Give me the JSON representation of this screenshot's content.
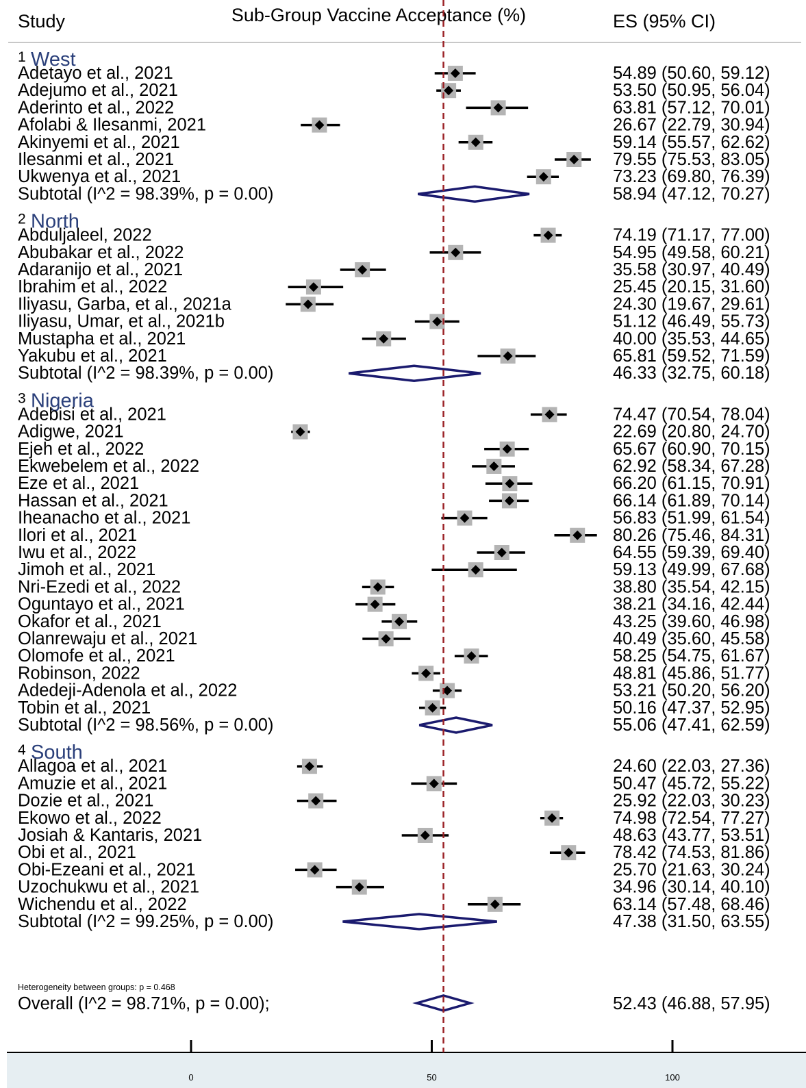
{
  "header": {
    "study": "Study",
    "title": "Sub-Group Vaccine Acceptance (%)",
    "es": "ES (95% CI)"
  },
  "colors": {
    "group_title": "#2a3f7a",
    "diamond": "#1a1a6e",
    "box": "#b4b4b4",
    "refline": "#9b2226",
    "axis_band": "#e6eef2"
  },
  "chart_data": {
    "type": "forest",
    "xaxis": {
      "min": 0,
      "max": 100,
      "ticks": [
        0,
        50,
        100
      ]
    },
    "reference_line": 52.43,
    "groups": [
      {
        "number": "1",
        "name": "West",
        "studies": [
          {
            "label": "Adetayo et al., 2021",
            "es": 54.89,
            "lo": 50.6,
            "hi": 59.12,
            "text": "54.89 (50.60, 59.12)"
          },
          {
            "label": "Adejumo et al., 2021",
            "es": 53.5,
            "lo": 50.95,
            "hi": 56.04,
            "text": "53.50 (50.95, 56.04)"
          },
          {
            "label": "Aderinto et al., 2022",
            "es": 63.81,
            "lo": 57.12,
            "hi": 70.01,
            "text": "63.81 (57.12, 70.01)"
          },
          {
            "label": "Afolabi & Ilesanmi, 2021",
            "es": 26.67,
            "lo": 22.79,
            "hi": 30.94,
            "text": "26.67 (22.79, 30.94)"
          },
          {
            "label": "Akinyemi et al., 2021",
            "es": 59.14,
            "lo": 55.57,
            "hi": 62.62,
            "text": "59.14 (55.57, 62.62)"
          },
          {
            "label": "Ilesanmi et al., 2021",
            "es": 79.55,
            "lo": 75.53,
            "hi": 83.05,
            "text": "79.55 (75.53, 83.05)"
          },
          {
            "label": "Ukwenya et al., 2021",
            "es": 73.23,
            "lo": 69.8,
            "hi": 76.39,
            "text": "73.23 (69.80, 76.39)"
          }
        ],
        "subtotal": {
          "label": "Subtotal  (I^2 = 98.39%, p = 0.00)",
          "es": 58.94,
          "lo": 47.12,
          "hi": 70.27,
          "text": "58.94 (47.12, 70.27)"
        }
      },
      {
        "number": "2",
        "name": "North",
        "studies": [
          {
            "label": "Abduljaleel, 2022",
            "es": 74.19,
            "lo": 71.17,
            "hi": 77.0,
            "text": "74.19 (71.17, 77.00)"
          },
          {
            "label": "Abubakar et al., 2022",
            "es": 54.95,
            "lo": 49.58,
            "hi": 60.21,
            "text": "54.95 (49.58, 60.21)"
          },
          {
            "label": "Adaranijo et al., 2021",
            "es": 35.58,
            "lo": 30.97,
            "hi": 40.49,
            "text": "35.58 (30.97, 40.49)"
          },
          {
            "label": "Ibrahim et al., 2022",
            "es": 25.45,
            "lo": 20.15,
            "hi": 31.6,
            "text": "25.45 (20.15, 31.60)"
          },
          {
            "label": "Iliyasu, Garba, et al., 2021a",
            "es": 24.3,
            "lo": 19.67,
            "hi": 29.61,
            "text": "24.30 (19.67, 29.61)"
          },
          {
            "label": "Iliyasu, Umar, et al., 2021b",
            "es": 51.12,
            "lo": 46.49,
            "hi": 55.73,
            "text": "51.12 (46.49, 55.73)"
          },
          {
            "label": "Mustapha et al., 2021",
            "es": 40.0,
            "lo": 35.53,
            "hi": 44.65,
            "text": "40.00 (35.53, 44.65)"
          },
          {
            "label": "Yakubu et al., 2021",
            "es": 65.81,
            "lo": 59.52,
            "hi": 71.59,
            "text": "65.81 (59.52, 71.59)"
          }
        ],
        "subtotal": {
          "label": "Subtotal  (I^2 = 98.39%, p = 0.00)",
          "es": 46.33,
          "lo": 32.75,
          "hi": 60.18,
          "text": "46.33 (32.75, 60.18)"
        }
      },
      {
        "number": "3",
        "name": "Nigeria",
        "studies": [
          {
            "label": "Adebisi et al., 2021",
            "es": 74.47,
            "lo": 70.54,
            "hi": 78.04,
            "text": "74.47 (70.54, 78.04)"
          },
          {
            "label": "Adigwe, 2021",
            "es": 22.69,
            "lo": 20.8,
            "hi": 24.7,
            "text": "22.69 (20.80, 24.70)"
          },
          {
            "label": "Ejeh et al., 2022",
            "es": 65.67,
            "lo": 60.9,
            "hi": 70.15,
            "text": "65.67 (60.90, 70.15)"
          },
          {
            "label": "Ekwebelem et al., 2022",
            "es": 62.92,
            "lo": 58.34,
            "hi": 67.28,
            "text": "62.92 (58.34, 67.28)"
          },
          {
            "label": "Eze et al., 2021",
            "es": 66.2,
            "lo": 61.15,
            "hi": 70.91,
            "text": "66.20 (61.15, 70.91)"
          },
          {
            "label": "Hassan et al., 2021",
            "es": 66.14,
            "lo": 61.89,
            "hi": 70.14,
            "text": "66.14 (61.89, 70.14)"
          },
          {
            "label": "Iheanacho et al., 2021",
            "es": 56.83,
            "lo": 51.99,
            "hi": 61.54,
            "text": "56.83 (51.99, 61.54)"
          },
          {
            "label": "Ilori et al., 2021",
            "es": 80.26,
            "lo": 75.46,
            "hi": 84.31,
            "text": "80.26 (75.46, 84.31)"
          },
          {
            "label": "Iwu et al., 2022",
            "es": 64.55,
            "lo": 59.39,
            "hi": 69.4,
            "text": "64.55 (59.39, 69.40)"
          },
          {
            "label": "Jimoh et al., 2021",
            "es": 59.13,
            "lo": 49.99,
            "hi": 67.68,
            "text": "59.13 (49.99, 67.68)"
          },
          {
            "label": "Nri-Ezedi et al., 2022",
            "es": 38.8,
            "lo": 35.54,
            "hi": 42.15,
            "text": "38.80 (35.54, 42.15)"
          },
          {
            "label": "Oguntayo et al., 2021",
            "es": 38.21,
            "lo": 34.16,
            "hi": 42.44,
            "text": "38.21 (34.16, 42.44)"
          },
          {
            "label": "Okafor et al., 2021",
            "es": 43.25,
            "lo": 39.6,
            "hi": 46.98,
            "text": "43.25 (39.60, 46.98)"
          },
          {
            "label": "Olanrewaju et al., 2021",
            "es": 40.49,
            "lo": 35.6,
            "hi": 45.58,
            "text": "40.49 (35.60, 45.58)"
          },
          {
            "label": "Olomofe et al., 2021",
            "es": 58.25,
            "lo": 54.75,
            "hi": 61.67,
            "text": "58.25 (54.75, 61.67)"
          },
          {
            "label": "Robinson, 2022",
            "es": 48.81,
            "lo": 45.86,
            "hi": 51.77,
            "text": "48.81 (45.86, 51.77)"
          },
          {
            "label": "Adedeji-Adenola et al., 2022",
            "es": 53.21,
            "lo": 50.2,
            "hi": 56.2,
            "text": "53.21 (50.20, 56.20)"
          },
          {
            "label": "Tobin et al., 2021",
            "es": 50.16,
            "lo": 47.37,
            "hi": 52.95,
            "text": "50.16 (47.37, 52.95)"
          }
        ],
        "subtotal": {
          "label": "Subtotal  (I^2 = 98.56%, p = 0.00)",
          "es": 55.06,
          "lo": 47.41,
          "hi": 62.59,
          "text": "55.06 (47.41, 62.59)"
        }
      },
      {
        "number": "4",
        "name": "South",
        "studies": [
          {
            "label": "Allagoa et al., 2021",
            "es": 24.6,
            "lo": 22.03,
            "hi": 27.36,
            "text": "24.60 (22.03, 27.36)"
          },
          {
            "label": "Amuzie et al., 2021",
            "es": 50.47,
            "lo": 45.72,
            "hi": 55.22,
            "text": "50.47 (45.72, 55.22)"
          },
          {
            "label": "Dozie et al., 2021",
            "es": 25.92,
            "lo": 22.03,
            "hi": 30.23,
            "text": "25.92 (22.03, 30.23)"
          },
          {
            "label": "Ekowo et al., 2022",
            "es": 74.98,
            "lo": 72.54,
            "hi": 77.27,
            "text": "74.98 (72.54, 77.27)"
          },
          {
            "label": "Josiah & Kantaris, 2021",
            "es": 48.63,
            "lo": 43.77,
            "hi": 53.51,
            "text": "48.63 (43.77, 53.51)"
          },
          {
            "label": "Obi et al., 2021",
            "es": 78.42,
            "lo": 74.53,
            "hi": 81.86,
            "text": "78.42 (74.53, 81.86)"
          },
          {
            "label": "Obi-Ezeani et al., 2021",
            "es": 25.7,
            "lo": 21.63,
            "hi": 30.24,
            "text": "25.70 (21.63, 30.24)"
          },
          {
            "label": "Uzochukwu et al., 2021",
            "es": 34.96,
            "lo": 30.14,
            "hi": 40.1,
            "text": "34.96 (30.14, 40.10)"
          },
          {
            "label": "Wichendu et al., 2022",
            "es": 63.14,
            "lo": 57.48,
            "hi": 68.46,
            "text": "63.14 (57.48, 68.46)"
          }
        ],
        "subtotal": {
          "label": "Subtotal  (I^2 = 99.25%, p = 0.00)",
          "es": 47.38,
          "lo": 31.5,
          "hi": 63.55,
          "text": "47.38 (31.50, 63.55)"
        }
      }
    ],
    "heterogeneity_note": "Heterogeneity between groups: p = 0.468",
    "overall": {
      "label": "Overall  (I^2 = 98.71%, p = 0.00);",
      "es": 52.43,
      "lo": 46.88,
      "hi": 57.95,
      "text": "52.43 (46.88, 57.95)"
    }
  }
}
